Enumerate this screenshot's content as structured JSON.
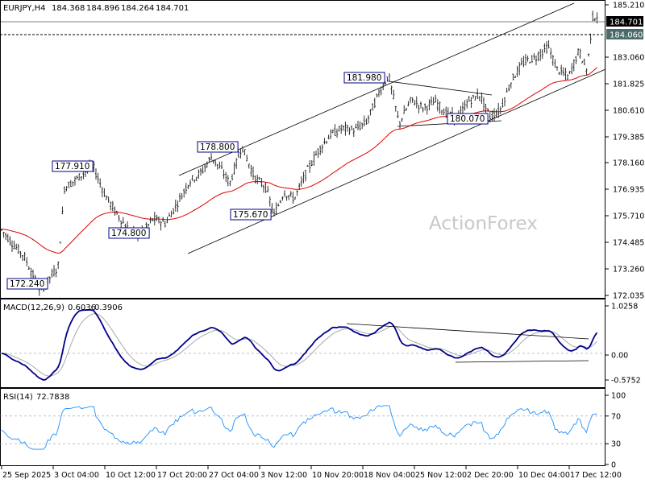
{
  "header": {
    "symbol": "EURJPY,H4",
    "open": "184.368",
    "high": "184.896",
    "low": "184.264",
    "close": "184.701"
  },
  "watermark": "ActionForex",
  "macd_panel": {
    "label": "MACD(12,26,9)",
    "v1": "0.6036",
    "v2": "0.3906",
    "ticks": [
      "1.0258",
      "0.00",
      "-0.5752"
    ]
  },
  "rsi_panel": {
    "label": "RSI(14)",
    "value": "72.7838",
    "ticks": [
      "100",
      "70",
      "30",
      "0"
    ]
  },
  "price_axis": {
    "ticks": [
      "185.210",
      "184.285",
      "183.060",
      "181.825",
      "180.610",
      "179.385",
      "178.160",
      "176.935",
      "175.710",
      "174.485",
      "173.260",
      "172.035"
    ]
  },
  "current_price_label": "184.701",
  "alt_price_label": "184.060",
  "time_axis": [
    "25 Sep 2025",
    "3 Oct 04:00",
    "10 Oct 12:00",
    "17 Oct 20:00",
    "27 Oct 04:00",
    "3 Nov 12:00",
    "10 Nov 20:00",
    "18 Nov 04:00",
    "25 Nov 12:00",
    "2 Dec 20:00",
    "10 Dec 04:00",
    "17 Dec 12:00"
  ],
  "annotations": [
    "172.240",
    "177.910",
    "174.800",
    "178.800",
    "175.670",
    "181.980",
    "180.070"
  ],
  "colors": {
    "macd_line": "#00008b",
    "signal_line": "#aaaaaa",
    "ma_line": "#e00000",
    "rsi_line": "#1e90ff",
    "label_border": "#00008b"
  },
  "chart_data": {
    "type": "line",
    "title": "EURJPY,H4",
    "ylim": [
      172.035,
      185.21
    ],
    "price_path_keypoints": [
      [
        0,
        175.1
      ],
      [
        15,
        174.4
      ],
      [
        30,
        173.8
      ],
      [
        50,
        172.24
      ],
      [
        65,
        173.0
      ],
      [
        72,
        173.3
      ],
      [
        80,
        176.9
      ],
      [
        95,
        177.3
      ],
      [
        115,
        177.91
      ],
      [
        130,
        176.6
      ],
      [
        145,
        175.7
      ],
      [
        160,
        175.0
      ],
      [
        175,
        174.8
      ],
      [
        190,
        175.5
      ],
      [
        205,
        175.3
      ],
      [
        220,
        176.2
      ],
      [
        235,
        177.2
      ],
      [
        250,
        177.6
      ],
      [
        262,
        178.3
      ],
      [
        275,
        177.7
      ],
      [
        285,
        177.1
      ],
      [
        300,
        178.8
      ],
      [
        315,
        177.4
      ],
      [
        330,
        176.9
      ],
      [
        340,
        175.67
      ],
      [
        352,
        176.7
      ],
      [
        365,
        176.4
      ],
      [
        380,
        177.6
      ],
      [
        395,
        178.6
      ],
      [
        410,
        179.3
      ],
      [
        425,
        179.6
      ],
      [
        440,
        179.5
      ],
      [
        455,
        179.9
      ],
      [
        470,
        181.2
      ],
      [
        482,
        181.98
      ],
      [
        495,
        179.8
      ],
      [
        510,
        180.9
      ],
      [
        525,
        180.5
      ],
      [
        540,
        180.8
      ],
      [
        555,
        180.2
      ],
      [
        568,
        180.07
      ],
      [
        580,
        180.8
      ],
      [
        595,
        181.1
      ],
      [
        608,
        180.1
      ],
      [
        620,
        180.4
      ],
      [
        635,
        181.8
      ],
      [
        650,
        182.6
      ],
      [
        665,
        182.8
      ],
      [
        680,
        183.3
      ],
      [
        690,
        182.3
      ],
      [
        705,
        181.9
      ],
      [
        718,
        183.1
      ],
      [
        728,
        182.2
      ],
      [
        735,
        184.6
      ],
      [
        742,
        184.7
      ]
    ],
    "macd_ylim": [
      -0.5752,
      1.0258
    ],
    "rsi_ylim": [
      0,
      100
    ]
  }
}
